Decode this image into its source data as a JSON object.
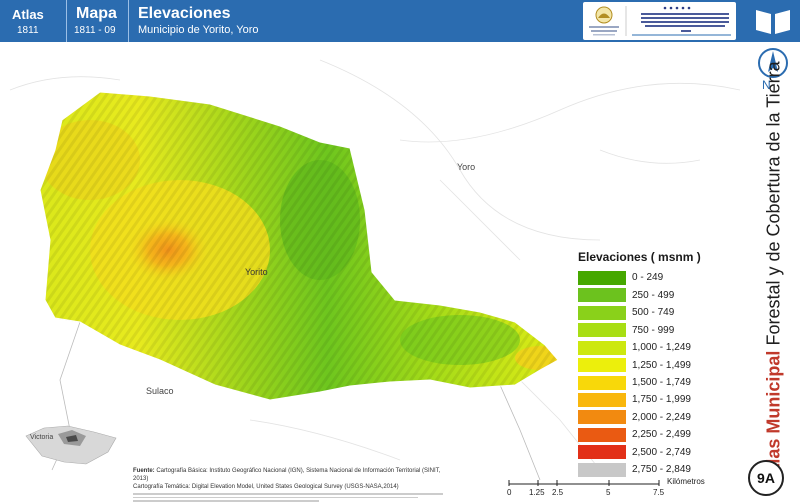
{
  "header": {
    "atlas_label": "Atlas",
    "atlas_number": "1811",
    "map_label": "Mapa",
    "map_number": "1811 - 09",
    "title": "Elevaciones",
    "subtitle": "Municipio de Yorito, Yoro"
  },
  "places": {
    "yoro": "Yoro",
    "yorito": "Yorito",
    "sulaco": "Sulaco",
    "victoria": "Victoria"
  },
  "legend": {
    "title": "Elevaciones ( msnm )",
    "items": [
      {
        "label": "0 - 249",
        "color": "#46a800"
      },
      {
        "label": "250 - 499",
        "color": "#6cc21e"
      },
      {
        "label": "500 - 749",
        "color": "#8ad11a"
      },
      {
        "label": "750 - 999",
        "color": "#a8de14"
      },
      {
        "label": "1,000 - 1,249",
        "color": "#cde80f"
      },
      {
        "label": "1,250 - 1,499",
        "color": "#ecef0c"
      },
      {
        "label": "1,500 - 1,749",
        "color": "#f8d80a"
      },
      {
        "label": "1,750 - 1,999",
        "color": "#f9b70d"
      },
      {
        "label": "2,000 - 2,249",
        "color": "#f28a10"
      },
      {
        "label": "2,250 - 2,499",
        "color": "#ea5a12"
      },
      {
        "label": "2,500 - 2,749",
        "color": "#e23018"
      },
      {
        "label": "2,750 - 2,849",
        "color": "#c8c8c8"
      }
    ]
  },
  "footer": {
    "source_label": "Fuente:",
    "source_line1": "Cartografía Básica: Instituto Geográfico Nacional (IGN), Sistema Nacional de Información Territorial (SINIT, 2013)",
    "source_line2": "Cartografía Temática: Digital Elevation Model, United States Geological Survey (USGS-NASA,2014)"
  },
  "scale": {
    "ticks": [
      "0",
      "1.25",
      "2.5",
      "5",
      "7.5"
    ],
    "unit": "Kilómetros"
  },
  "north": {
    "label": "N"
  },
  "side_title": {
    "bold": "Atlas Municipal",
    "rest": " Forestal y de Cobertura de la Tierra"
  },
  "badge": "9A"
}
